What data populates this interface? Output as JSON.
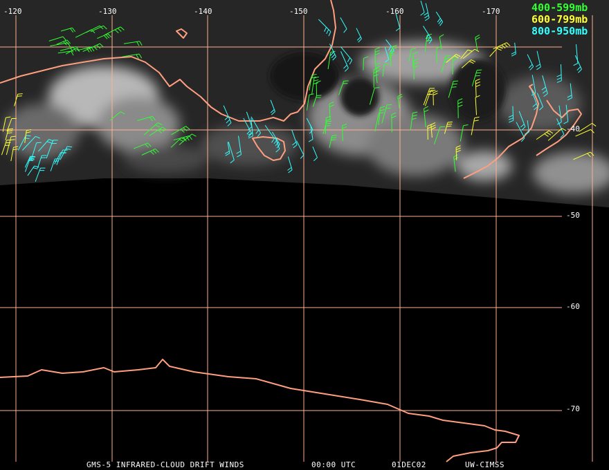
{
  "map": {
    "longitude_labels": [
      "-120",
      "-130",
      "-140",
      "-150",
      "-160",
      "-170"
    ],
    "latitude_labels": [
      "-40",
      "-50",
      "-60",
      "-70"
    ],
    "legend": [
      {
        "text": "400-599mb",
        "color": "#33ff33"
      },
      {
        "text": "600-799mb",
        "color": "#ffff33"
      },
      {
        "text": "800-950mb",
        "color": "#33ffff"
      }
    ],
    "colors": {
      "grid": "#ffb08f",
      "coast": "#ff9f80",
      "background": "#000000",
      "cloud": "#d8d8d8",
      "wind_high": "#33ff33",
      "wind_mid": "#ffff33",
      "wind_low": "#33ffff"
    }
  },
  "footer": {
    "product": "GMS-5 INFRARED-CLOUD DRIFT WINDS",
    "time": "00:00 UTC",
    "date": "01DEC02",
    "source": "UW-CIMSS"
  }
}
